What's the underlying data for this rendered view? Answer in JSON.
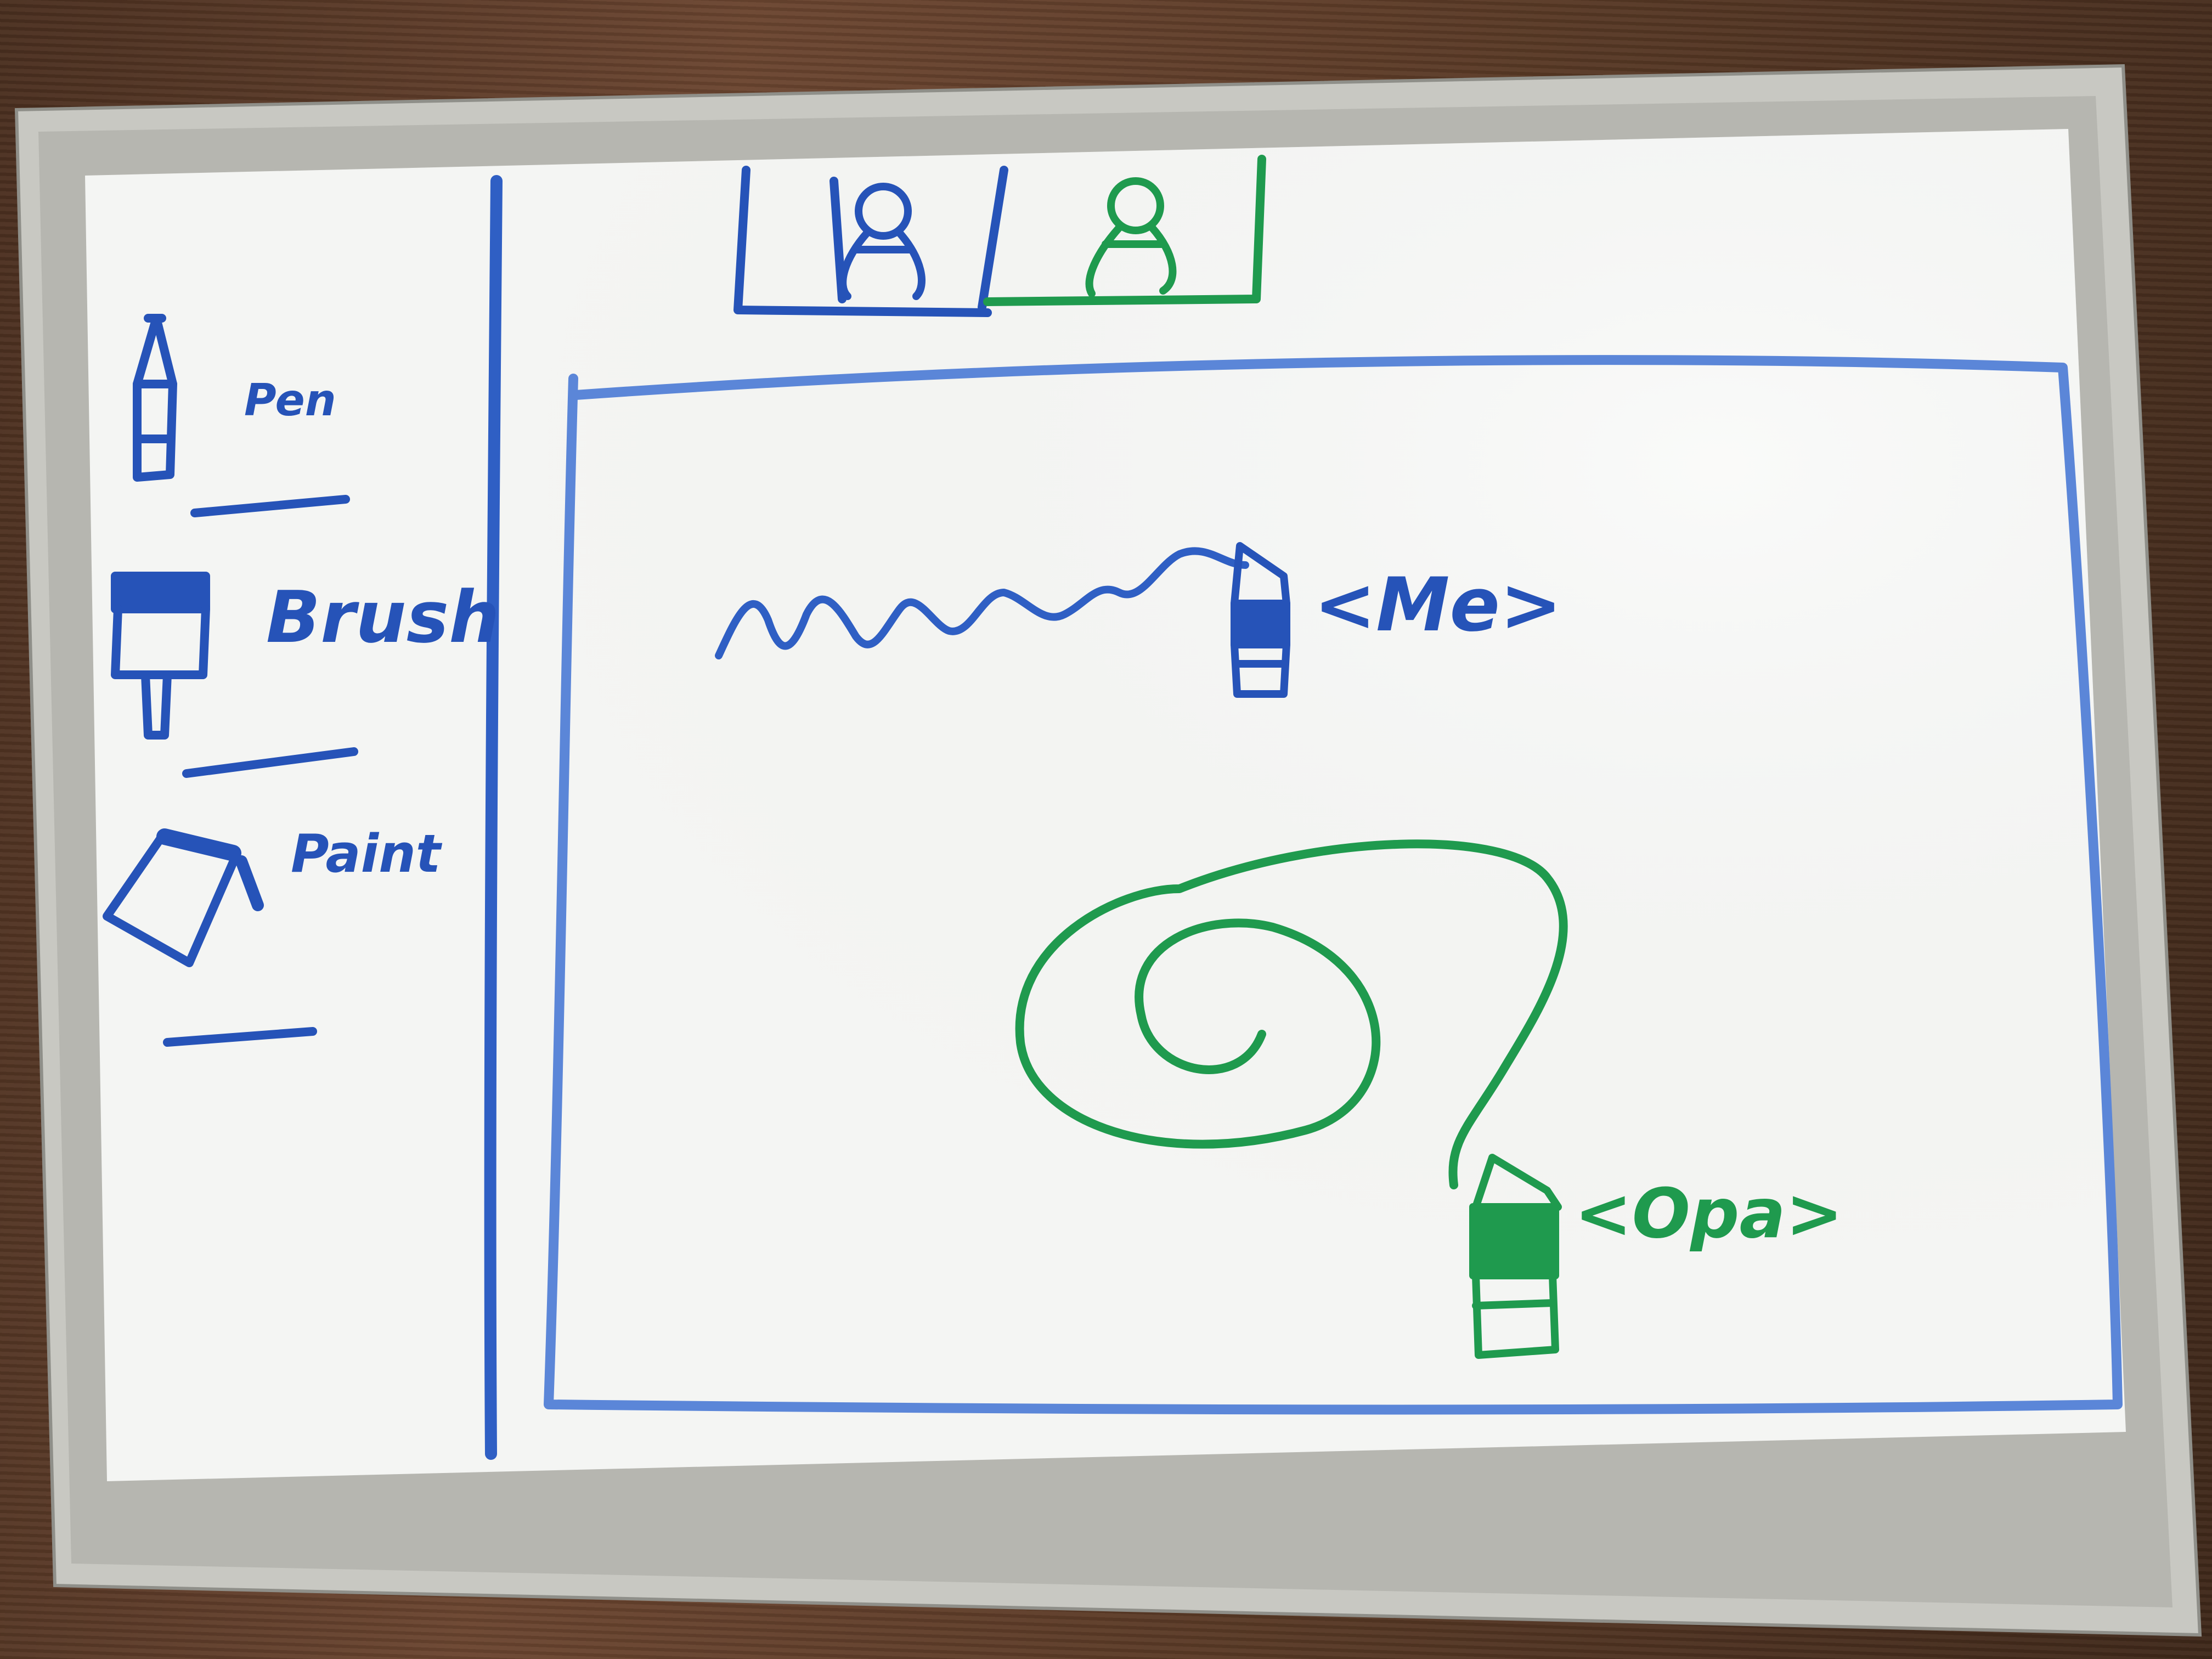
{
  "toolbar": {
    "tools": [
      {
        "label": "Pen",
        "icon": "pen-icon"
      },
      {
        "label": "Brush",
        "icon": "brush-icon"
      },
      {
        "label": "Paint",
        "icon": "paint-bucket-icon"
      }
    ]
  },
  "participants": [
    {
      "icon": "user-icon",
      "color": "#2653b8"
    },
    {
      "icon": "user-icon",
      "color": "#1f9a4e"
    }
  ],
  "canvas": {
    "cursors": [
      {
        "label": "<Me>",
        "icon": "brush-cursor-icon",
        "color": "#2653b8"
      },
      {
        "label": "<Opa>",
        "icon": "brush-cursor-icon",
        "color": "#1f9a4e"
      }
    ]
  },
  "colors": {
    "blue_marker": "#2653b8",
    "light_blue_marker": "#5b86d8",
    "green_marker": "#1f9a4e",
    "frame": "#c9c9c4",
    "board": "#f3f4f2"
  }
}
